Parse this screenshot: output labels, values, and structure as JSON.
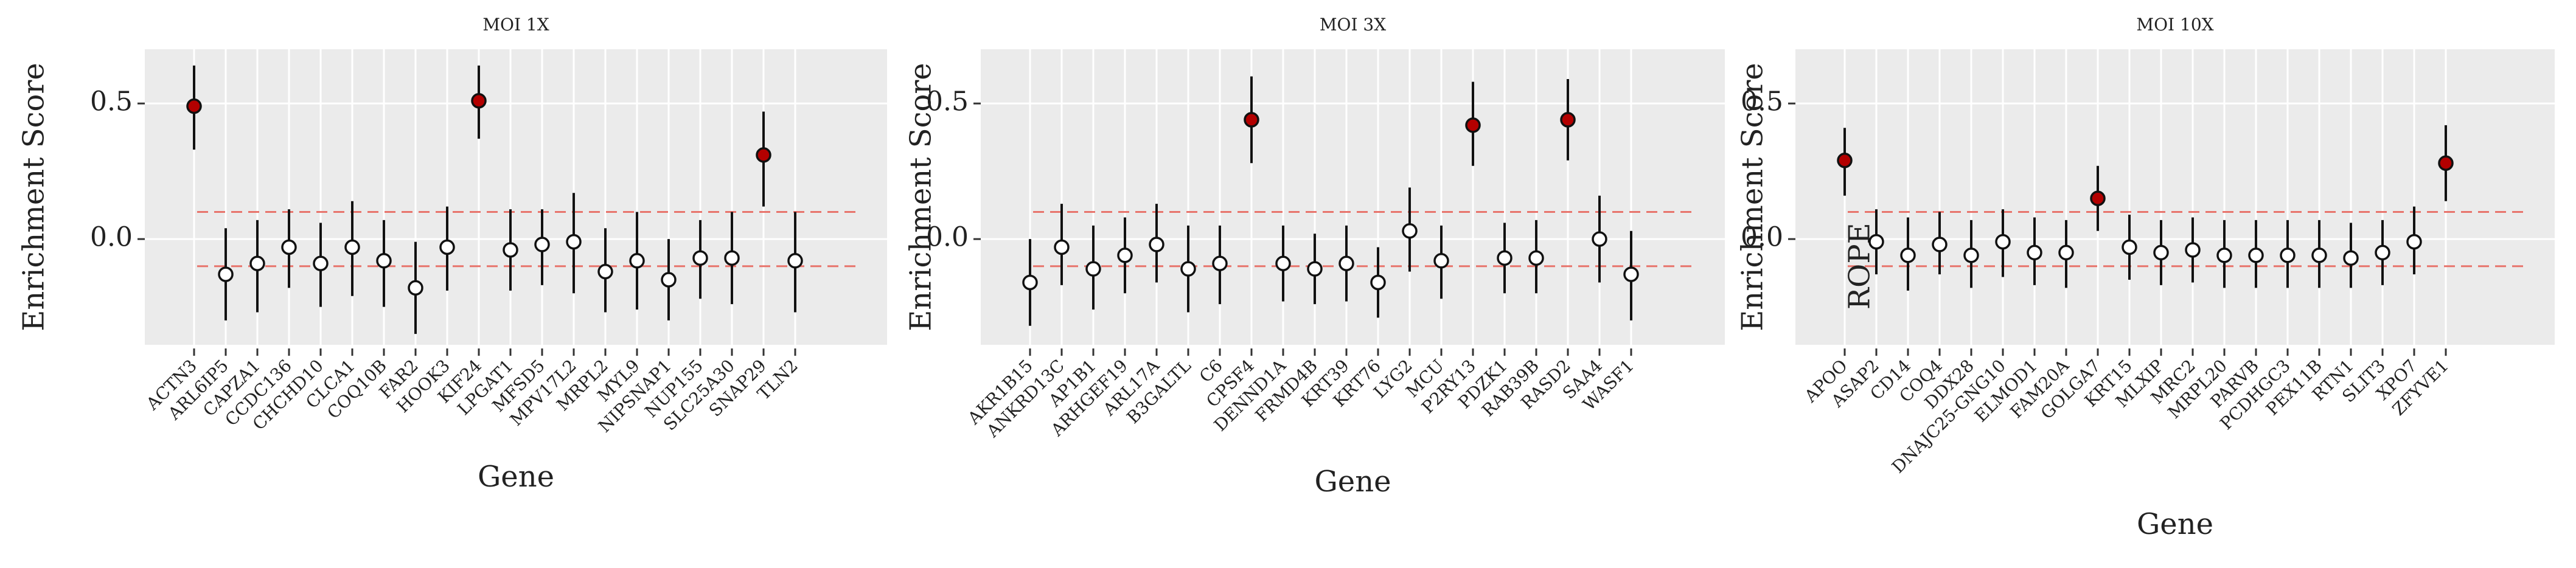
{
  "chart_data": [
    {
      "type": "errorbar",
      "title": "MOI 1X",
      "x_label": "Gene",
      "y_label": "Enrichment Score",
      "categories": [
        "ACTN3",
        "ARL6IP5",
        "CAPZA1",
        "CCDC136",
        "CHCHD10",
        "CLCA1",
        "COQ10B",
        "FAR2",
        "HOOK3",
        "KIF24",
        "LPGAT1",
        "MFSD5",
        "MPV17L2",
        "MRPL2",
        "MYL9",
        "NIPSNAP1",
        "NUP155",
        "SLC25A30",
        "SNAP29",
        "TLN2"
      ],
      "values": [
        0.49,
        -0.13,
        -0.09,
        -0.03,
        -0.09,
        -0.03,
        -0.08,
        -0.18,
        -0.03,
        0.51,
        -0.04,
        -0.02,
        -0.01,
        -0.12,
        -0.08,
        -0.15,
        -0.07,
        -0.07,
        0.31,
        -0.08
      ],
      "lower": [
        0.33,
        -0.3,
        -0.27,
        -0.18,
        -0.25,
        -0.21,
        -0.25,
        -0.35,
        -0.19,
        0.37,
        -0.19,
        -0.17,
        -0.2,
        -0.27,
        -0.26,
        -0.3,
        -0.22,
        -0.24,
        0.12,
        -0.27
      ],
      "upper": [
        0.64,
        0.04,
        0.07,
        0.11,
        0.06,
        0.14,
        0.07,
        -0.01,
        0.12,
        0.64,
        0.11,
        0.11,
        0.17,
        0.04,
        0.1,
        0.0,
        0.07,
        0.1,
        0.47,
        0.1
      ],
      "significant": [
        true,
        false,
        false,
        false,
        false,
        false,
        false,
        false,
        false,
        true,
        false,
        false,
        false,
        false,
        false,
        false,
        false,
        false,
        true,
        false
      ],
      "significant_color": "#b30000",
      "other_color": "#ffffff",
      "reference_lines": [
        0.1,
        -0.1
      ],
      "reference_color": "#e8746c",
      "ylim": [
        -0.39,
        0.7
      ],
      "yticks": [
        {
          "value": 0,
          "label": "0.0"
        },
        0.5
      ],
      "grid": true
    },
    {
      "type": "errorbar",
      "title": "MOI 3X",
      "x_label": "Gene",
      "y_label": "Enrichment Score",
      "categories": [
        "AKR1B15",
        "ANKRD13C",
        "AP1B1",
        "ARHGEF19",
        "ARL17A",
        "B3GALTL",
        "C6",
        "CPSF4",
        "DENND1A",
        "FRMD4B",
        "KRT39",
        "KRT76",
        "LYG2",
        "MCU",
        "P2RY13",
        "PDZK1",
        "RAB39B",
        "RASD2",
        "SAA4",
        "WASF1"
      ],
      "values": [
        -0.16,
        -0.03,
        -0.11,
        -0.06,
        -0.02,
        -0.11,
        -0.09,
        0.44,
        -0.09,
        -0.11,
        -0.09,
        -0.16,
        0.03,
        -0.08,
        0.42,
        -0.07,
        -0.07,
        0.44,
        0.0,
        -0.13
      ],
      "lower": [
        -0.32,
        -0.17,
        -0.26,
        -0.2,
        -0.16,
        -0.27,
        -0.24,
        0.28,
        -0.23,
        -0.24,
        -0.23,
        -0.29,
        -0.12,
        -0.22,
        0.27,
        -0.2,
        -0.2,
        0.29,
        -0.16,
        -0.3
      ],
      "upper": [
        0.0,
        0.13,
        0.05,
        0.08,
        0.13,
        0.05,
        0.05,
        0.6,
        0.05,
        0.02,
        0.05,
        -0.03,
        0.19,
        0.05,
        0.58,
        0.06,
        0.07,
        0.59,
        0.16,
        0.03
      ],
      "significant": [
        false,
        false,
        false,
        false,
        false,
        false,
        false,
        true,
        false,
        false,
        false,
        false,
        false,
        false,
        true,
        false,
        false,
        true,
        false,
        false
      ],
      "significant_color": "#b30000",
      "other_color": "#ffffff",
      "reference_lines": [
        0.1,
        -0.1
      ],
      "reference_color": "#e8746c",
      "ylim": [
        -0.39,
        0.7
      ],
      "yticks": [
        {
          "value": 0,
          "label": "0.0"
        },
        0.5
      ],
      "grid": true
    },
    {
      "type": "errorbar",
      "title": "MOI 10X",
      "x_label": "Gene",
      "y_label": "Enrichment Score",
      "annotation": "ROPE",
      "categories": [
        "APOO",
        "ASAP2",
        "CD14",
        "COQ4",
        "DDX28",
        "DNAJC25-GNG10",
        "ELMOD1",
        "FAM20A",
        "GOLGA7",
        "KRT15",
        "MLXIP",
        "MRC2",
        "MRPL20",
        "PARVB",
        "PCDHGC3",
        "PEX11B",
        "RTN1",
        "SLIT3",
        "XPO7",
        "ZFYVE1"
      ],
      "values": [
        0.29,
        -0.01,
        -0.06,
        -0.02,
        -0.06,
        -0.01,
        -0.05,
        -0.05,
        0.15,
        -0.03,
        -0.05,
        -0.04,
        -0.06,
        -0.06,
        -0.06,
        -0.06,
        -0.07,
        -0.05,
        -0.01,
        0.28
      ],
      "lower": [
        0.16,
        -0.13,
        -0.19,
        -0.13,
        -0.18,
        -0.14,
        -0.17,
        -0.18,
        0.03,
        -0.15,
        -0.17,
        -0.16,
        -0.18,
        -0.18,
        -0.18,
        -0.18,
        -0.18,
        -0.17,
        -0.13,
        0.14
      ],
      "upper": [
        0.41,
        0.11,
        0.08,
        0.1,
        0.07,
        0.11,
        0.08,
        0.07,
        0.27,
        0.09,
        0.07,
        0.08,
        0.07,
        0.07,
        0.07,
        0.07,
        0.06,
        0.07,
        0.12,
        0.42
      ],
      "significant": [
        true,
        false,
        false,
        false,
        false,
        false,
        false,
        false,
        true,
        false,
        false,
        false,
        false,
        false,
        false,
        false,
        false,
        false,
        false,
        true
      ],
      "significant_color": "#b30000",
      "other_color": "#ffffff",
      "reference_lines": [
        0.1,
        -0.1
      ],
      "reference_color": "#e8746c",
      "ylim": [
        -0.39,
        0.7
      ],
      "yticks": [
        {
          "value": 0,
          "label": "0.0"
        },
        0.5
      ],
      "grid": true
    }
  ]
}
